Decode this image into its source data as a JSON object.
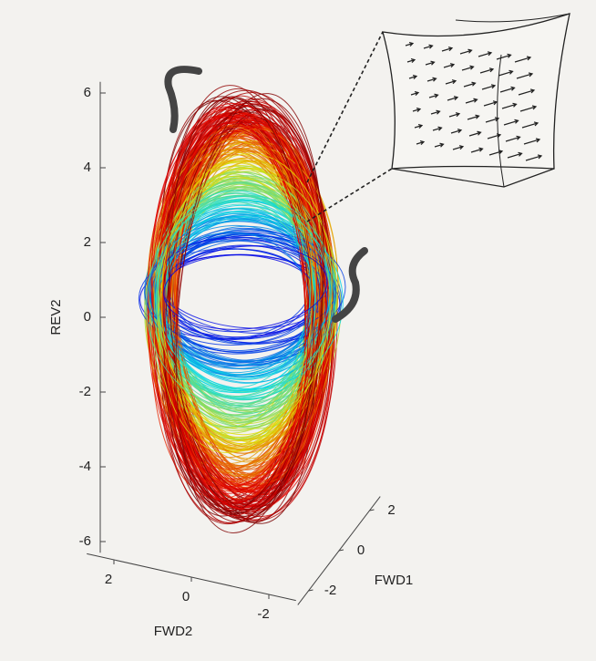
{
  "chart_data": {
    "type": "trajectory3d",
    "zlabel": "REV2",
    "zlim": [
      -6.3,
      6.3
    ],
    "zticks": [
      -6,
      -4,
      -2,
      0,
      2,
      4,
      6
    ],
    "xlabel": "FWD2",
    "xlim": [
      -2.7,
      2.7
    ],
    "xticks": [
      2,
      0,
      -2
    ],
    "ylabel": "FWD1",
    "ylim": [
      -2.7,
      2.7
    ],
    "yticks": [
      2,
      0,
      -2
    ]
  }
}
